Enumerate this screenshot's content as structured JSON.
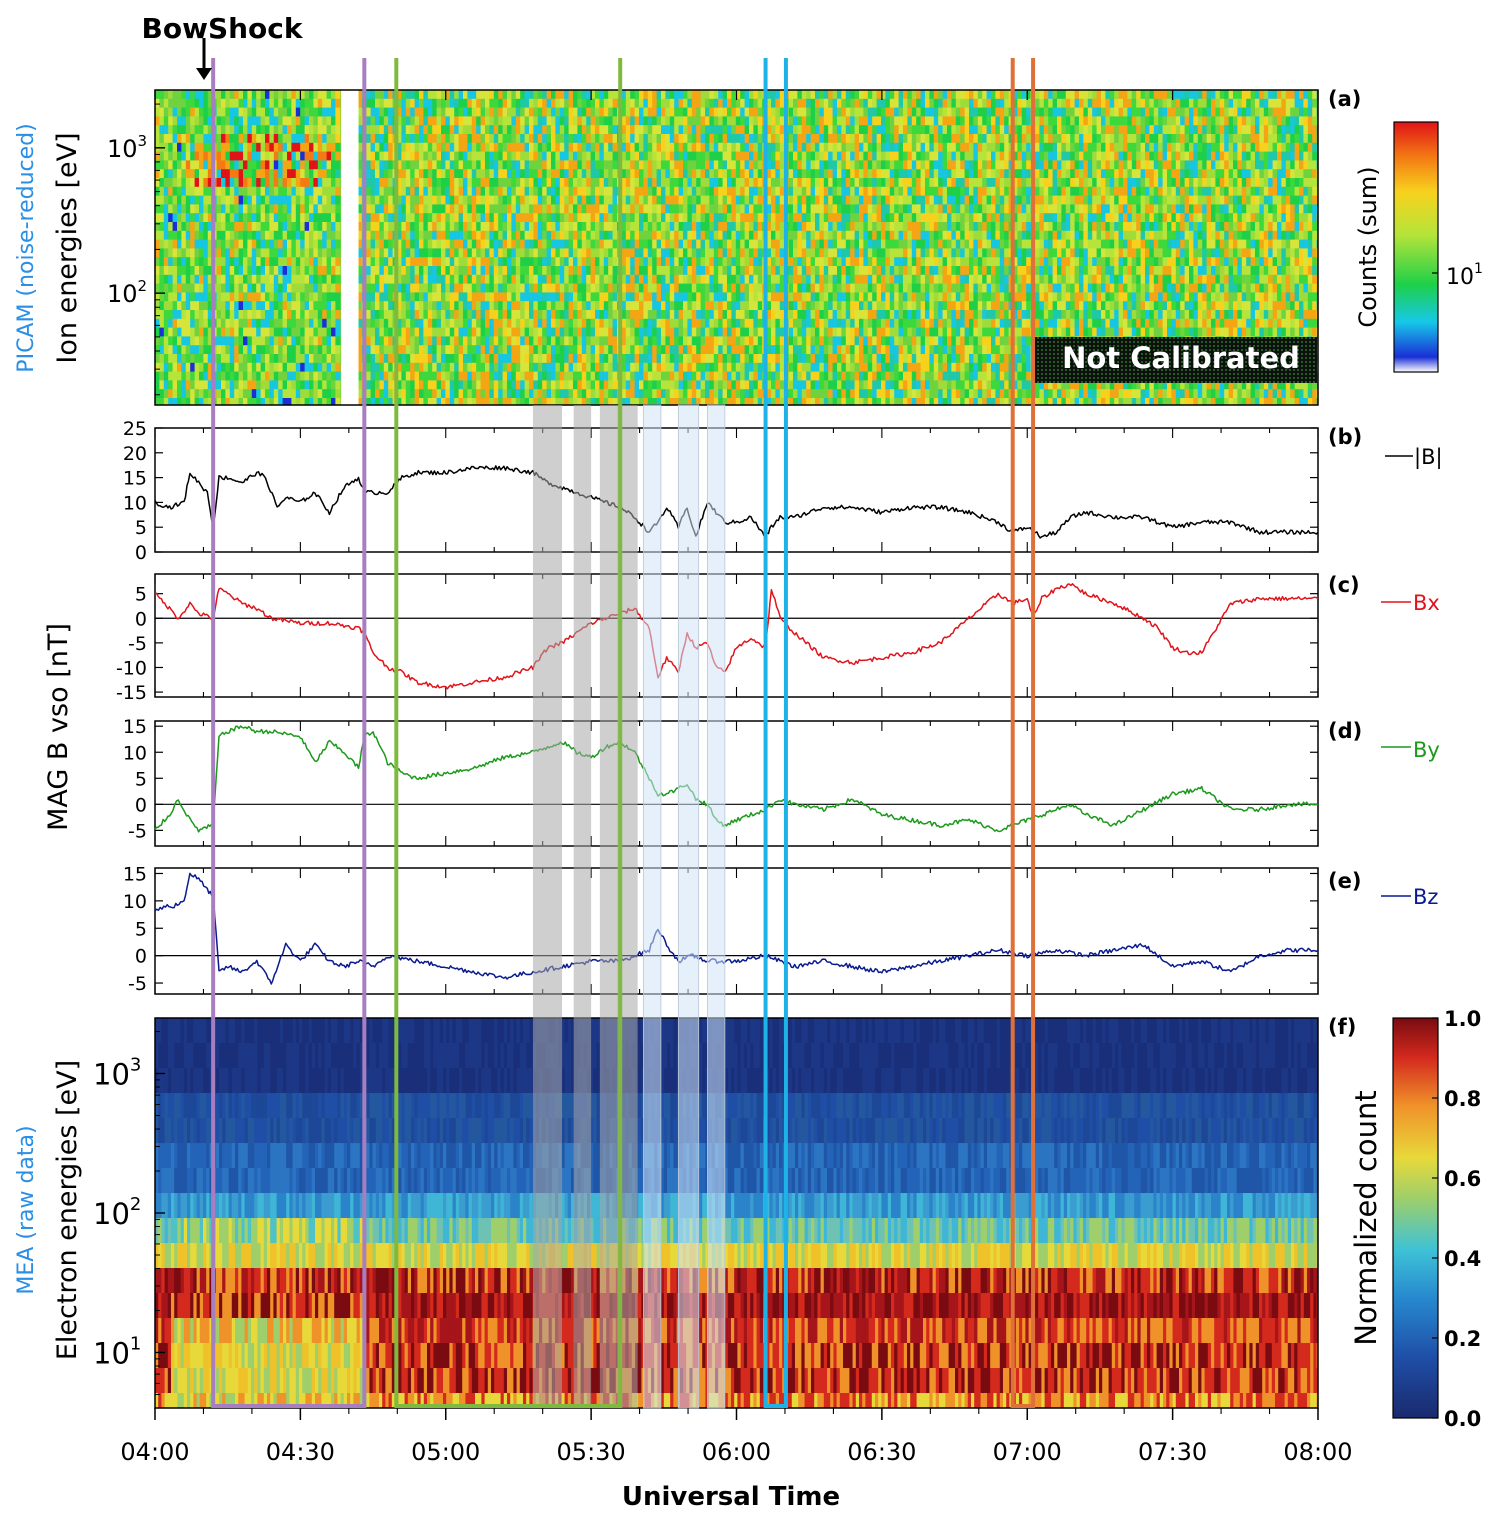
{
  "figure": {
    "bowshock_label": "BowShock",
    "not_calibrated": "Not Calibrated",
    "x_axis_title": "Universal Time",
    "time_ticks": [
      "04:00",
      "04:30",
      "05:00",
      "05:30",
      "06:00",
      "06:30",
      "07:00",
      "07:30",
      "08:00"
    ],
    "panel_a": {
      "tag": "(a)",
      "ylabel_instrument": "PICAM",
      "ylabel_note": "(noise-reduced)",
      "ylabel_main": "Ion energies [eV]",
      "yticks": [
        "10",
        "10"
      ],
      "yticks_exp": [
        "3",
        "2"
      ],
      "colorbar_label": "Counts (sum)",
      "colorbar_tick": "10",
      "colorbar_tick_exp": "1"
    },
    "panel_b": {
      "tag": "(b)",
      "legend": "|B|",
      "yticks": [
        "25",
        "20",
        "15",
        "10",
        "5",
        "0"
      ]
    },
    "panel_c": {
      "tag": "(c)",
      "legend": "Bx",
      "yticks": [
        "5",
        "0",
        "-5",
        "-10",
        "-15"
      ]
    },
    "panel_d": {
      "tag": "(d)",
      "legend": "By",
      "yticks": [
        "15",
        "10",
        "5",
        "0",
        "-5"
      ]
    },
    "panel_e": {
      "tag": "(e)",
      "legend": "Bz",
      "yticks": [
        "15",
        "10",
        "5",
        "0",
        "-5"
      ]
    },
    "mag_ylabel": "MAG B vso [nT]",
    "panel_f": {
      "tag": "(f)",
      "ylabel_instrument": "MEA",
      "ylabel_note": "(raw data)",
      "ylabel_main": "Electron energies [eV]",
      "yticks": [
        "10",
        "10",
        "10"
      ],
      "yticks_exp": [
        "3",
        "2",
        "1"
      ],
      "colorbar_label": "Normalized count",
      "colorbar_ticks": [
        "1.0",
        "0.8",
        "0.6",
        "0.4",
        "0.2",
        "0.0"
      ]
    }
  },
  "colors": {
    "boundary_purple": "#a77fc0",
    "boundary_green": "#7fba3f",
    "boundary_cyan": "#1fb2e6",
    "boundary_orange": "#e0703a",
    "bmag": "#000000",
    "bx": "#e0141a",
    "by": "#1b9a1b",
    "bz": "#0a1a8f",
    "label_blue": "#2a8fe6",
    "shade_grey": "#a8a8a8",
    "shade_light": "#cfe4f6"
  },
  "chart_data": {
    "type": "line",
    "x_unit": "UT hours",
    "xlim": [
      4.0,
      8.0
    ],
    "bow_shock_time": 4.15,
    "boundary_pairs": [
      {
        "color": "purple",
        "start": 4.2,
        "end": 4.72
      },
      {
        "color": "green",
        "start": 4.83,
        "end": 5.6
      },
      {
        "color": "cyan",
        "start": 6.1,
        "end": 6.17
      },
      {
        "color": "orange",
        "start": 6.95,
        "end": 7.02
      }
    ],
    "grey_shades": [
      [
        5.3,
        5.4
      ],
      [
        5.44,
        5.5
      ],
      [
        5.53,
        5.6
      ],
      [
        5.59,
        5.66
      ]
    ],
    "light_shades": [
      [
        5.68,
        5.74
      ],
      [
        5.8,
        5.87
      ],
      [
        5.9,
        5.96
      ]
    ],
    "series": [
      {
        "name": "|B|",
        "ylim": [
          0,
          25
        ],
        "x": [
          4.0,
          4.05,
          4.1,
          4.12,
          4.15,
          4.18,
          4.2,
          4.22,
          4.25,
          4.3,
          4.35,
          4.38,
          4.42,
          4.45,
          4.5,
          4.55,
          4.6,
          4.65,
          4.7,
          4.72,
          4.75,
          4.8,
          4.85,
          4.9,
          5.0,
          5.1,
          5.2,
          5.3,
          5.35,
          5.4,
          5.45,
          5.5,
          5.55,
          5.6,
          5.65,
          5.7,
          5.73,
          5.76,
          5.8,
          5.83,
          5.86,
          5.9,
          5.93,
          5.96,
          6.0,
          6.05,
          6.1,
          6.12,
          6.15,
          6.2,
          6.25,
          6.3,
          6.4,
          6.5,
          6.6,
          6.7,
          6.8,
          6.9,
          6.95,
          7.0,
          7.05,
          7.1,
          7.15,
          7.2,
          7.3,
          7.4,
          7.5,
          7.6,
          7.7,
          7.8,
          7.9,
          8.0
        ],
        "values": [
          10,
          9,
          10,
          16,
          14,
          12,
          5,
          15,
          15,
          14,
          16,
          15,
          9,
          11,
          10,
          12,
          8,
          13,
          15,
          12,
          12,
          12,
          15,
          16,
          16,
          17,
          17,
          16,
          14,
          13,
          12,
          11,
          10,
          9,
          7,
          4,
          6,
          9,
          5,
          9,
          3,
          10,
          8,
          6,
          6,
          7,
          3,
          5,
          7,
          7,
          8,
          9,
          9,
          8,
          9,
          9,
          8,
          6,
          4,
          5,
          3,
          4,
          7,
          8,
          7,
          7,
          5,
          6,
          6,
          4,
          4,
          4
        ]
      },
      {
        "name": "Bx",
        "ylim": [
          -16,
          9
        ],
        "x": [
          4.0,
          4.05,
          4.08,
          4.12,
          4.15,
          4.2,
          4.22,
          4.25,
          4.3,
          4.35,
          4.4,
          4.5,
          4.6,
          4.7,
          4.72,
          4.75,
          4.8,
          4.85,
          4.9,
          5.0,
          5.1,
          5.2,
          5.25,
          5.3,
          5.35,
          5.4,
          5.45,
          5.5,
          5.55,
          5.6,
          5.65,
          5.7,
          5.73,
          5.76,
          5.8,
          5.83,
          5.86,
          5.9,
          5.93,
          5.96,
          6.0,
          6.05,
          6.1,
          6.12,
          6.15,
          6.2,
          6.3,
          6.4,
          6.5,
          6.6,
          6.7,
          6.8,
          6.9,
          6.95,
          7.0,
          7.02,
          7.05,
          7.1,
          7.15,
          7.2,
          7.3,
          7.4,
          7.45,
          7.5,
          7.55,
          7.6,
          7.7,
          7.8,
          7.9,
          8.0
        ],
        "values": [
          5,
          2,
          0,
          3,
          1,
          0,
          6,
          5,
          3,
          2,
          0,
          -1,
          -1,
          -2,
          -3,
          -7,
          -10,
          -11,
          -13,
          -14,
          -13,
          -12,
          -11,
          -10,
          -6,
          -5,
          -3,
          -1,
          0,
          1,
          2,
          -2,
          -12,
          -8,
          -11,
          -3,
          -6,
          -5,
          -10,
          -11,
          -6,
          -4,
          -6,
          6,
          0,
          -3,
          -8,
          -9,
          -8,
          -7,
          -5,
          0,
          5,
          3,
          4,
          0,
          4,
          6,
          7,
          5,
          3,
          0,
          -2,
          -6,
          -7,
          -7,
          3,
          4,
          4,
          4
        ]
      },
      {
        "name": "By",
        "ylim": [
          -8,
          16
        ],
        "x": [
          4.0,
          4.05,
          4.08,
          4.12,
          4.15,
          4.2,
          4.22,
          4.25,
          4.3,
          4.35,
          4.4,
          4.5,
          4.55,
          4.6,
          4.65,
          4.7,
          4.72,
          4.75,
          4.8,
          4.85,
          4.9,
          5.0,
          5.1,
          5.2,
          5.3,
          5.35,
          5.4,
          5.45,
          5.5,
          5.55,
          5.6,
          5.65,
          5.7,
          5.73,
          5.76,
          5.8,
          5.83,
          5.86,
          5.9,
          5.93,
          5.96,
          6.0,
          6.05,
          6.1,
          6.15,
          6.2,
          6.3,
          6.4,
          6.5,
          6.6,
          6.7,
          6.8,
          6.9,
          6.95,
          7.0,
          7.05,
          7.1,
          7.15,
          7.2,
          7.3,
          7.4,
          7.5,
          7.6,
          7.7,
          7.8,
          7.9,
          8.0
        ],
        "values": [
          -5,
          -2,
          1,
          -3,
          -5,
          -4,
          13,
          14,
          15,
          14,
          14,
          13,
          8,
          12,
          10,
          7,
          13,
          14,
          8,
          6,
          5,
          6,
          7,
          9,
          10,
          11,
          12,
          10,
          9,
          11,
          12,
          10,
          5,
          2,
          2,
          3,
          4,
          1,
          0,
          -3,
          -4,
          -3,
          -2,
          -1,
          1,
          0,
          -1,
          1,
          -2,
          -3,
          -4,
          -3,
          -5,
          -4,
          -3,
          -2,
          -1,
          0,
          -2,
          -4,
          -1,
          2,
          3,
          -1,
          -1,
          0,
          0
        ]
      },
      {
        "name": "Bz",
        "ylim": [
          -7,
          16
        ],
        "x": [
          4.0,
          4.03,
          4.06,
          4.1,
          4.12,
          4.15,
          4.18,
          4.2,
          4.22,
          4.25,
          4.3,
          4.35,
          4.4,
          4.45,
          4.5,
          4.55,
          4.6,
          4.65,
          4.7,
          4.75,
          4.8,
          4.9,
          5.0,
          5.1,
          5.2,
          5.3,
          5.4,
          5.5,
          5.6,
          5.65,
          5.7,
          5.73,
          5.76,
          5.8,
          5.85,
          5.9,
          6.0,
          6.1,
          6.2,
          6.3,
          6.4,
          6.5,
          6.6,
          6.7,
          6.8,
          6.9,
          7.0,
          7.1,
          7.2,
          7.3,
          7.4,
          7.5,
          7.6,
          7.7,
          7.8,
          7.9,
          8.0
        ],
        "values": [
          8,
          9,
          9,
          10,
          15,
          14,
          12,
          11,
          -3,
          -2,
          -3,
          -1,
          -5,
          2,
          -1,
          2,
          -1,
          -2,
          -1,
          -2,
          0,
          -1,
          -2,
          -3,
          -4,
          -3,
          -2,
          -1,
          -1,
          0,
          1,
          5,
          2,
          -1,
          0,
          -1,
          -1,
          0,
          -2,
          -1,
          -2,
          -3,
          -2,
          -1,
          0,
          1,
          0,
          1,
          0,
          1,
          2,
          -2,
          -1,
          -3,
          0,
          1,
          1
        ]
      }
    ],
    "panel_a_ylim_eV": [
      17,
      2500
    ],
    "panel_a_ytick_values": [
      1000,
      100
    ],
    "panel_f_ylim_eV": [
      4,
      2500
    ],
    "panel_f_ytick_values": [
      1000,
      100,
      10
    ],
    "panel_f_colorbar_range": [
      0.0,
      1.0
    ]
  }
}
